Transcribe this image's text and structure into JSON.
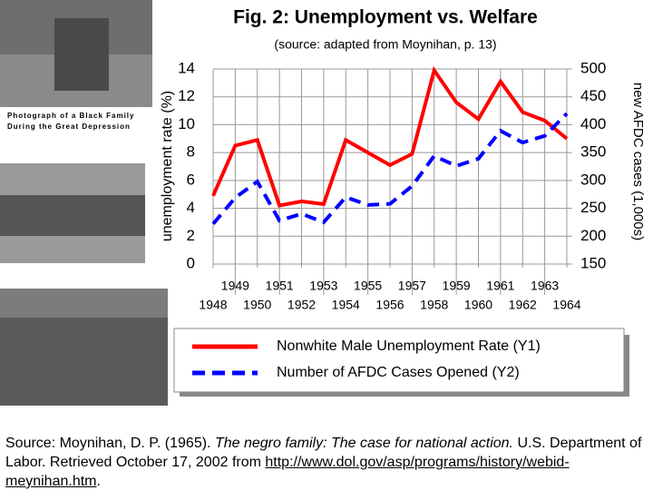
{
  "chart_data": {
    "type": "line",
    "title": "Fig. 2: Unemployment vs. Welfare",
    "subtitle": "(source: adapted from Moynihan, p. 13)",
    "ylabel": "unemployment rate (%)",
    "y2label": "new AFDC cases (1,000s)",
    "x": [
      1948,
      1949,
      1950,
      1951,
      1952,
      1953,
      1954,
      1955,
      1956,
      1957,
      1958,
      1959,
      1960,
      1961,
      1962,
      1963,
      1964
    ],
    "xlim": [
      1948,
      1964
    ],
    "xticks": [
      1948,
      1949,
      1950,
      1951,
      1952,
      1953,
      1954,
      1955,
      1956,
      1957,
      1958,
      1959,
      1960,
      1961,
      1962,
      1963,
      1964
    ],
    "ylim": [
      0,
      14
    ],
    "yticks": [
      0,
      2,
      4,
      6,
      8,
      10,
      12,
      14
    ],
    "y2lim": [
      150,
      500
    ],
    "y2ticks": [
      150,
      200,
      250,
      300,
      350,
      400,
      450,
      500
    ],
    "grid": true,
    "series": [
      {
        "name": "Nonwhite Male Unemployment Rate (Y1)",
        "color": "#ff0000",
        "axis": "y",
        "values": [
          4.9,
          8.5,
          8.9,
          4.2,
          4.5,
          4.3,
          8.9,
          8.0,
          7.1,
          7.9,
          13.9,
          11.6,
          10.4,
          13.1,
          10.9,
          10.3,
          9.0
        ]
      },
      {
        "name": "Number of AFDC Cases Opened (Y2)",
        "color": "#0000ff",
        "axis": "y2",
        "values": [
          222,
          269,
          298,
          228,
          240,
          225,
          270,
          256,
          258,
          290,
          344,
          326,
          339,
          389,
          368,
          380,
          420
        ]
      }
    ]
  },
  "photo_caption": [
    "Photograph of a Black Family",
    "During the Great Depression"
  ],
  "source": {
    "prefix": "Source: Moynihan, D. P. (1965). ",
    "title": "The negro family: The case for national action.",
    "rest": " U.S. Department of Labor. Retrieved October 17, 2002 from ",
    "url": "http://www.dol.gov/asp/programs/history/webid-meynihan.htm",
    "end": "."
  }
}
